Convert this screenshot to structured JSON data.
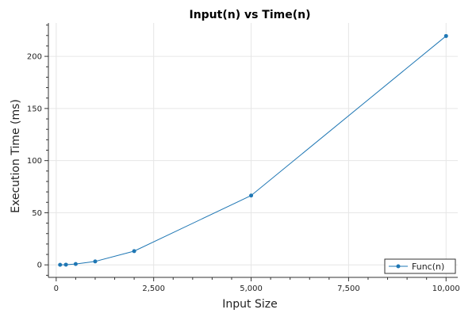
{
  "chart_data": {
    "type": "line",
    "title": "Input(n) vs Time(n)",
    "xlabel": "Input Size",
    "ylabel": "Execution Time (ms)",
    "xlim": [
      -200,
      10300
    ],
    "ylim": [
      -12,
      232
    ],
    "x_ticks": [
      0,
      2500,
      5000,
      7500,
      10000
    ],
    "x_tick_labels": [
      "0",
      "2,500",
      "5,000",
      "7,500",
      "10,000"
    ],
    "y_ticks": [
      0,
      50,
      100,
      150,
      200
    ],
    "y_tick_labels": [
      "0",
      "50",
      "100",
      "150",
      "200"
    ],
    "grid": true,
    "legend_position": "bottom-right",
    "series": [
      {
        "name": "Func(n)",
        "color": "#1f77b4",
        "marker": "circle",
        "x": [
          100,
          250,
          500,
          1000,
          2000,
          5000,
          10000
        ],
        "y": [
          0.1,
          0.2,
          0.8,
          3.3,
          13.2,
          66.5,
          219.5
        ]
      }
    ]
  }
}
